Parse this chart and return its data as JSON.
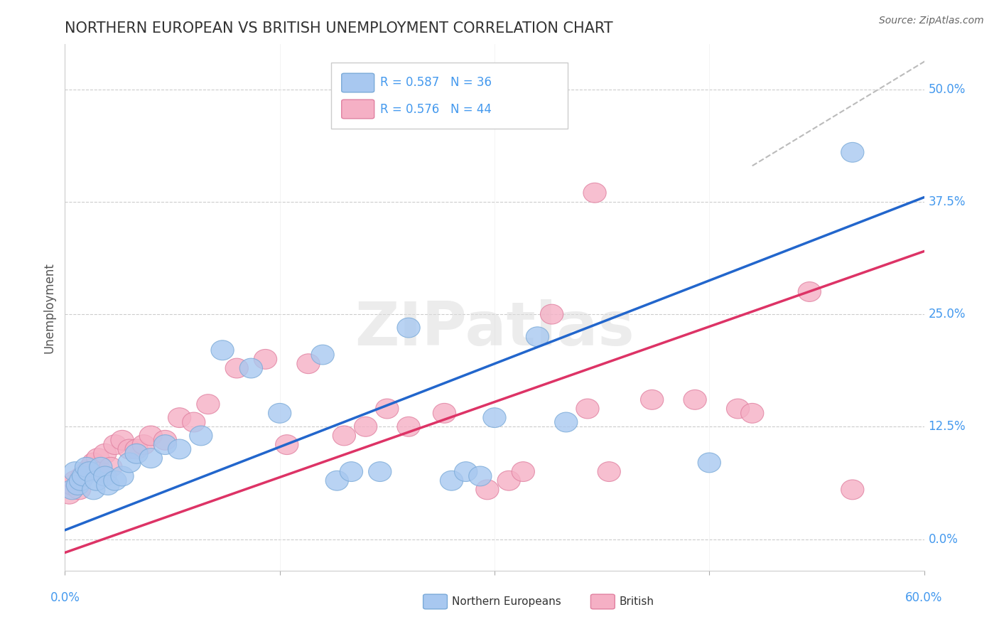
{
  "title": "NORTHERN EUROPEAN VS BRITISH UNEMPLOYMENT CORRELATION CHART",
  "source": "Source: ZipAtlas.com",
  "ylabel": "Unemployment",
  "ytick_labels": [
    "0.0%",
    "12.5%",
    "25.0%",
    "37.5%",
    "50.0%"
  ],
  "ytick_values": [
    0.0,
    12.5,
    25.0,
    37.5,
    50.0
  ],
  "xlim": [
    0.0,
    60.0
  ],
  "ylim": [
    -3.5,
    55.0
  ],
  "legend_blue_r": "R = 0.587",
  "legend_blue_n": "N = 36",
  "legend_pink_r": "R = 0.576",
  "legend_pink_n": "N = 44",
  "legend_label_blue": "Northern Europeans",
  "legend_label_pink": "British",
  "blue_color": "#A8C8F0",
  "pink_color": "#F5B0C5",
  "blue_edge_color": "#7AAAD8",
  "pink_edge_color": "#E080A0",
  "line_blue_color": "#2266CC",
  "line_pink_color": "#DD3366",
  "line_gray_color": "#BBBBBB",
  "text_blue_color": "#4499EE",
  "blue_scatter": [
    [
      0.5,
      5.5
    ],
    [
      0.7,
      7.5
    ],
    [
      0.9,
      6.0
    ],
    [
      1.1,
      6.5
    ],
    [
      1.3,
      7.0
    ],
    [
      1.5,
      8.0
    ],
    [
      1.7,
      7.5
    ],
    [
      2.0,
      5.5
    ],
    [
      2.2,
      6.5
    ],
    [
      2.5,
      8.0
    ],
    [
      2.8,
      7.0
    ],
    [
      3.0,
      6.0
    ],
    [
      3.5,
      6.5
    ],
    [
      4.0,
      7.0
    ],
    [
      4.5,
      8.5
    ],
    [
      5.0,
      9.5
    ],
    [
      6.0,
      9.0
    ],
    [
      7.0,
      10.5
    ],
    [
      8.0,
      10.0
    ],
    [
      9.5,
      11.5
    ],
    [
      11.0,
      21.0
    ],
    [
      13.0,
      19.0
    ],
    [
      15.0,
      14.0
    ],
    [
      18.0,
      20.5
    ],
    [
      19.0,
      6.5
    ],
    [
      20.0,
      7.5
    ],
    [
      22.0,
      7.5
    ],
    [
      24.0,
      23.5
    ],
    [
      27.0,
      6.5
    ],
    [
      28.0,
      7.5
    ],
    [
      29.0,
      7.0
    ],
    [
      30.0,
      13.5
    ],
    [
      33.0,
      22.5
    ],
    [
      35.0,
      13.0
    ],
    [
      45.0,
      8.5
    ],
    [
      55.0,
      43.0
    ]
  ],
  "pink_scatter": [
    [
      0.3,
      5.0
    ],
    [
      0.5,
      6.0
    ],
    [
      0.7,
      6.5
    ],
    [
      1.0,
      5.5
    ],
    [
      1.2,
      7.0
    ],
    [
      1.5,
      7.5
    ],
    [
      1.8,
      8.0
    ],
    [
      2.0,
      8.5
    ],
    [
      2.3,
      9.0
    ],
    [
      2.5,
      7.5
    ],
    [
      2.8,
      9.5
    ],
    [
      3.2,
      8.0
    ],
    [
      3.5,
      10.5
    ],
    [
      4.0,
      11.0
    ],
    [
      4.5,
      10.0
    ],
    [
      5.0,
      10.0
    ],
    [
      5.5,
      10.5
    ],
    [
      6.0,
      11.5
    ],
    [
      7.0,
      11.0
    ],
    [
      8.0,
      13.5
    ],
    [
      9.0,
      13.0
    ],
    [
      10.0,
      15.0
    ],
    [
      12.0,
      19.0
    ],
    [
      14.0,
      20.0
    ],
    [
      15.5,
      10.5
    ],
    [
      17.0,
      19.5
    ],
    [
      19.5,
      11.5
    ],
    [
      21.0,
      12.5
    ],
    [
      22.5,
      14.5
    ],
    [
      24.0,
      12.5
    ],
    [
      26.5,
      14.0
    ],
    [
      29.5,
      5.5
    ],
    [
      31.0,
      6.5
    ],
    [
      32.0,
      7.5
    ],
    [
      34.0,
      25.0
    ],
    [
      36.5,
      14.5
    ],
    [
      37.0,
      38.5
    ],
    [
      38.0,
      7.5
    ],
    [
      41.0,
      15.5
    ],
    [
      44.0,
      15.5
    ],
    [
      47.0,
      14.5
    ],
    [
      48.0,
      14.0
    ],
    [
      52.0,
      27.5
    ],
    [
      55.0,
      5.5
    ]
  ],
  "blue_line_x": [
    0,
    60
  ],
  "blue_line_y": [
    1.0,
    38.0
  ],
  "pink_line_x": [
    0,
    60
  ],
  "pink_line_y": [
    -1.5,
    32.0
  ],
  "gray_line_x": [
    48,
    62
  ],
  "gray_line_y": [
    41.5,
    55.0
  ]
}
